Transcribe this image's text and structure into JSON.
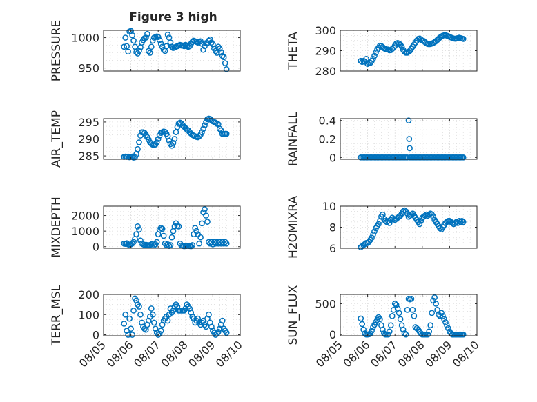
{
  "figure_title": "Figure 3 high",
  "colors": {
    "marker": "#0072BD",
    "axes": "#262626",
    "grid": "#d9d9d9"
  },
  "chart_data": [
    {
      "type": "scatter",
      "ylabel": "PRESSURE",
      "ylim": [
        945,
        1012
      ],
      "yticks": [
        950,
        1000
      ],
      "xlim": [
        0,
        5
      ],
      "xtick_labels": [
        "08/05",
        "08/06",
        "08/07",
        "08/08",
        "08/09",
        "08/10"
      ],
      "grid": true,
      "x": [
        0.75,
        0.8,
        0.85,
        0.9,
        0.95,
        1.0,
        1.05,
        1.1,
        1.15,
        1.2,
        1.25,
        1.3,
        1.35,
        1.4,
        1.45,
        1.5,
        1.55,
        1.6,
        1.65,
        1.7,
        1.75,
        1.8,
        1.85,
        1.9,
        1.95,
        2.0,
        2.05,
        2.1,
        2.15,
        2.2,
        2.25,
        2.3,
        2.35,
        2.4,
        2.45,
        2.5,
        2.55,
        2.6,
        2.65,
        2.7,
        2.75,
        2.8,
        2.85,
        2.9,
        2.95,
        3.0,
        3.05,
        3.1,
        3.15,
        3.2,
        3.25,
        3.3,
        3.35,
        3.4,
        3.45,
        3.5,
        3.55,
        3.6,
        3.65,
        3.7,
        3.75,
        3.8,
        3.85,
        3.9,
        3.95,
        4.0,
        4.05,
        4.1,
        4.15,
        4.2,
        4.25,
        4.3,
        4.35,
        4.4,
        4.45,
        4.5
      ],
      "y": [
        985,
        1000,
        986,
        977,
        1010,
        1011,
        1004,
        995,
        985,
        976,
        974,
        978,
        984,
        992,
        996,
        999,
        1000,
        1006,
        978,
        975,
        985,
        995,
        1000,
        1001,
        1002,
        1001,
        996,
        990,
        985,
        980,
        978,
        986,
        1005,
        1000,
        992,
        985,
        983,
        984,
        985,
        986,
        987,
        988,
        987,
        987,
        986,
        988,
        986,
        985,
        986,
        990,
        993,
        995,
        994,
        993,
        992,
        993,
        994,
        990,
        980,
        986,
        991,
        991,
        995,
        997,
        992,
        989,
        982,
        978,
        975,
        985,
        982,
        976,
        970,
        968,
        958,
        948
      ]
    },
    {
      "type": "scatter",
      "ylabel": "THETA",
      "ylim": [
        280,
        300
      ],
      "yticks": [
        280,
        290,
        300
      ],
      "xlim": [
        0,
        5
      ],
      "xtick_labels": [
        "08/05",
        "08/06",
        "08/07",
        "08/08",
        "08/09",
        "08/10"
      ],
      "grid": true,
      "x": [
        0.75,
        0.8,
        0.85,
        0.9,
        0.95,
        1.0,
        1.05,
        1.1,
        1.15,
        1.2,
        1.25,
        1.3,
        1.35,
        1.4,
        1.45,
        1.5,
        1.55,
        1.6,
        1.65,
        1.7,
        1.75,
        1.8,
        1.85,
        1.9,
        1.95,
        2.0,
        2.05,
        2.1,
        2.15,
        2.2,
        2.25,
        2.3,
        2.35,
        2.4,
        2.45,
        2.5,
        2.55,
        2.6,
        2.65,
        2.7,
        2.75,
        2.8,
        2.85,
        2.9,
        2.95,
        3.0,
        3.05,
        3.1,
        3.15,
        3.2,
        3.25,
        3.3,
        3.35,
        3.4,
        3.45,
        3.5,
        3.55,
        3.6,
        3.65,
        3.7,
        3.75,
        3.8,
        3.85,
        3.9,
        3.95,
        4.0,
        4.05,
        4.1,
        4.15,
        4.2,
        4.25,
        4.3,
        4.35,
        4.4,
        4.45,
        4.5
      ],
      "y": [
        285,
        284.5,
        285,
        284.6,
        286,
        283.5,
        284,
        284,
        285,
        286,
        287.5,
        289,
        290.5,
        291.5,
        292.5,
        292.3,
        291.8,
        291.2,
        290.8,
        290.7,
        290.6,
        290.2,
        290.3,
        290.9,
        291.5,
        292.5,
        293.5,
        293.8,
        293.5,
        293,
        292,
        290.5,
        289.5,
        289,
        289,
        289.5,
        290,
        291,
        292,
        293,
        294,
        295,
        295.8,
        296,
        295.5,
        295,
        294.8,
        294.2,
        293.7,
        293.3,
        293.2,
        293.3,
        293.5,
        293.8,
        294.2,
        294.7,
        295.3,
        295.9,
        296.5,
        297,
        297.4,
        297.6,
        297.6,
        297.4,
        297.1,
        296.8,
        296.5,
        296.2,
        296,
        295.9,
        296,
        296.2,
        296.4,
        296.2,
        296,
        295.8
      ]
    },
    {
      "type": "scatter",
      "ylabel": "AIR_TEMP",
      "ylim": [
        284,
        296
      ],
      "yticks": [
        285,
        290,
        295
      ],
      "xlim": [
        0,
        5
      ],
      "xtick_labels": [
        "08/05",
        "08/06",
        "08/07",
        "08/08",
        "08/09",
        "08/10"
      ],
      "grid": true,
      "x": [
        0.75,
        0.8,
        0.85,
        0.9,
        0.95,
        1.0,
        1.05,
        1.1,
        1.15,
        1.2,
        1.25,
        1.3,
        1.35,
        1.4,
        1.45,
        1.5,
        1.55,
        1.6,
        1.65,
        1.7,
        1.75,
        1.8,
        1.85,
        1.9,
        1.95,
        2.0,
        2.05,
        2.1,
        2.15,
        2.2,
        2.25,
        2.3,
        2.35,
        2.4,
        2.45,
        2.5,
        2.55,
        2.6,
        2.65,
        2.7,
        2.75,
        2.8,
        2.85,
        2.9,
        2.95,
        3.0,
        3.05,
        3.1,
        3.15,
        3.2,
        3.25,
        3.3,
        3.35,
        3.4,
        3.45,
        3.5,
        3.55,
        3.6,
        3.65,
        3.7,
        3.75,
        3.8,
        3.85,
        3.9,
        3.95,
        4.0,
        4.05,
        4.1,
        4.15,
        4.2,
        4.25,
        4.3,
        4.35,
        4.4,
        4.45,
        4.5
      ],
      "y": [
        284.7,
        284.8,
        284.7,
        284.8,
        284.6,
        284.7,
        284.8,
        284.5,
        284.6,
        285.5,
        287,
        289,
        291,
        292,
        292,
        291.8,
        291.2,
        290.5,
        289.8,
        289,
        288.6,
        288.3,
        288.2,
        288.4,
        289,
        290,
        291,
        291.8,
        292,
        292.2,
        292.1,
        291.5,
        290.8,
        289.5,
        288.5,
        288,
        288.8,
        290,
        292,
        293.5,
        294.5,
        294.8,
        294.5,
        294,
        293.6,
        293.2,
        292.8,
        292.5,
        292,
        291.6,
        291.2,
        291,
        290.8,
        290.6,
        290.5,
        290.8,
        291.3,
        292,
        293,
        294,
        295,
        295.8,
        296,
        295.9,
        295.5,
        295.2,
        295,
        294.8,
        294.5,
        294.3,
        293,
        292.5,
        291.5,
        291.5,
        291.5,
        291.5
      ]
    },
    {
      "type": "scatter",
      "ylabel": "RAINFALL",
      "ylim": [
        -0.02,
        0.42
      ],
      "yticks": [
        0,
        0.2,
        0.4
      ],
      "xlim": [
        0,
        5
      ],
      "xtick_labels": [
        "08/05",
        "08/06",
        "08/07",
        "08/08",
        "08/09",
        "08/10"
      ],
      "grid": true,
      "x": [
        0.75,
        0.8,
        0.85,
        0.9,
        0.95,
        1.0,
        1.05,
        1.1,
        1.15,
        1.2,
        1.25,
        1.3,
        1.35,
        1.4,
        1.45,
        1.5,
        1.55,
        1.6,
        1.65,
        1.7,
        1.75,
        1.8,
        1.85,
        1.9,
        1.95,
        2.0,
        2.05,
        2.1,
        2.15,
        2.2,
        2.25,
        2.3,
        2.35,
        2.4,
        2.45,
        2.5,
        2.52,
        2.54,
        2.55,
        2.6,
        2.65,
        2.7,
        2.75,
        2.8,
        2.85,
        2.9,
        2.95,
        3.0,
        3.05,
        3.1,
        3.15,
        3.2,
        3.25,
        3.3,
        3.35,
        3.4,
        3.45,
        3.5,
        3.55,
        3.6,
        3.65,
        3.7,
        3.75,
        3.8,
        3.85,
        3.9,
        3.95,
        4.0,
        4.05,
        4.1,
        4.15,
        4.2,
        4.25,
        4.3,
        4.35,
        4.4,
        4.45,
        4.5
      ],
      "y": [
        0,
        0,
        0,
        0,
        0,
        0,
        0,
        0,
        0,
        0,
        0,
        0,
        0,
        0,
        0,
        0,
        0,
        0,
        0,
        0,
        0,
        0,
        0,
        0,
        0,
        0,
        0,
        0,
        0,
        0,
        0,
        0,
        0,
        0,
        0,
        0.4,
        0.2,
        0.1,
        0,
        0,
        0,
        0,
        0,
        0,
        0,
        0,
        0,
        0,
        0,
        0,
        0,
        0,
        0,
        0,
        0,
        0,
        0,
        0,
        0,
        0,
        0,
        0,
        0,
        0,
        0,
        0,
        0,
        0,
        0,
        0,
        0,
        0,
        0,
        0,
        0,
        0,
        0,
        0
      ]
    },
    {
      "type": "scatter",
      "ylabel": "MIXDEPTH",
      "ylim": [
        -100,
        2600
      ],
      "yticks": [
        0,
        1000,
        2000
      ],
      "xlim": [
        0,
        5
      ],
      "xtick_labels": [
        "08/05",
        "08/06",
        "08/07",
        "08/08",
        "08/09",
        "08/10"
      ],
      "grid": true,
      "x": [
        0.75,
        0.8,
        0.85,
        0.9,
        0.95,
        1.0,
        1.05,
        1.1,
        1.15,
        1.2,
        1.25,
        1.3,
        1.35,
        1.4,
        1.45,
        1.5,
        1.55,
        1.6,
        1.65,
        1.7,
        1.75,
        1.8,
        1.85,
        1.9,
        1.95,
        2.0,
        2.05,
        2.1,
        2.15,
        2.2,
        2.25,
        2.3,
        2.35,
        2.4,
        2.45,
        2.5,
        2.55,
        2.6,
        2.65,
        2.7,
        2.75,
        2.8,
        2.85,
        2.9,
        2.95,
        3.0,
        3.05,
        3.1,
        3.15,
        3.2,
        3.25,
        3.3,
        3.35,
        3.4,
        3.45,
        3.5,
        3.55,
        3.6,
        3.65,
        3.7,
        3.75,
        3.8,
        3.85,
        3.9,
        3.95,
        4.0,
        4.05,
        4.1,
        4.15,
        4.2,
        4.25,
        4.3,
        4.35,
        4.4,
        4.45,
        4.5
      ],
      "y": [
        200,
        180,
        220,
        150,
        100,
        150,
        200,
        300,
        500,
        800,
        1300,
        1100,
        400,
        200,
        150,
        100,
        120,
        100,
        90,
        110,
        150,
        200,
        100,
        150,
        300,
        800,
        1100,
        1200,
        1150,
        700,
        200,
        100,
        150,
        50,
        100,
        600,
        1000,
        1300,
        1500,
        1350,
        1300,
        200,
        80,
        50,
        30,
        40,
        50,
        60,
        40,
        30,
        100,
        800,
        1200,
        1000,
        800,
        200,
        600,
        1500,
        2200,
        2400,
        2000,
        1600,
        300,
        200,
        300,
        150,
        300,
        200,
        300,
        200,
        300,
        200,
        300,
        200,
        300,
        200
      ]
    },
    {
      "type": "scatter",
      "ylabel": "H2OMIXRA",
      "ylim": [
        6,
        10
      ],
      "yticks": [
        6,
        8,
        10
      ],
      "xlim": [
        0,
        5
      ],
      "xtick_labels": [
        "08/05",
        "08/06",
        "08/07",
        "08/08",
        "08/09",
        "08/10"
      ],
      "grid": true,
      "x": [
        0.75,
        0.8,
        0.85,
        0.9,
        0.95,
        1.0,
        1.05,
        1.1,
        1.15,
        1.2,
        1.25,
        1.3,
        1.35,
        1.4,
        1.45,
        1.5,
        1.55,
        1.6,
        1.65,
        1.7,
        1.75,
        1.8,
        1.85,
        1.9,
        1.95,
        2.0,
        2.05,
        2.1,
        2.15,
        2.2,
        2.25,
        2.3,
        2.35,
        2.4,
        2.45,
        2.5,
        2.55,
        2.6,
        2.65,
        2.7,
        2.75,
        2.8,
        2.85,
        2.9,
        2.95,
        3.0,
        3.05,
        3.1,
        3.15,
        3.2,
        3.25,
        3.3,
        3.35,
        3.4,
        3.45,
        3.5,
        3.55,
        3.6,
        3.65,
        3.7,
        3.75,
        3.8,
        3.85,
        3.9,
        3.95,
        4.0,
        4.05,
        4.1,
        4.15,
        4.2,
        4.25,
        4.3,
        4.35,
        4.4,
        4.45,
        4.5
      ],
      "y": [
        6.1,
        6.2,
        6.3,
        6.4,
        6.5,
        6.5,
        6.6,
        6.8,
        7,
        7.3,
        7.6,
        7.9,
        8.1,
        8.3,
        8.6,
        9,
        9.2,
        8.8,
        8.6,
        8.5,
        8.6,
        8.4,
        8.7,
        8.9,
        8.8,
        8.7,
        8.8,
        8.9,
        9,
        9.1,
        9.3,
        9.5,
        9.6,
        9.5,
        9.3,
        9,
        9.1,
        9.2,
        9.3,
        9.1,
        8.9,
        8.7,
        8.5,
        8.3,
        8.6,
        8.9,
        9,
        9.1,
        9.2,
        9.1,
        9.2,
        9.3,
        9.2,
        9,
        8.7,
        8.5,
        8.3,
        8.1,
        7.9,
        7.8,
        8,
        8.2,
        8.4,
        8.5,
        8.6,
        8.6,
        8.5,
        8.4,
        8.3,
        8.4,
        8.5,
        8.4,
        8.6,
        8.5,
        8.6,
        8.5
      ]
    },
    {
      "type": "scatter",
      "ylabel": "TERR_MSL",
      "ylim": [
        -5,
        200
      ],
      "yticks": [
        0,
        100,
        200
      ],
      "xlim": [
        0,
        5
      ],
      "xtick_labels": [
        "08/05",
        "08/06",
        "08/07",
        "08/08",
        "08/09",
        "08/10"
      ],
      "grid": true,
      "x": [
        0.75,
        0.8,
        0.85,
        0.9,
        0.95,
        1.0,
        1.05,
        1.1,
        1.15,
        1.2,
        1.25,
        1.3,
        1.35,
        1.4,
        1.45,
        1.5,
        1.55,
        1.6,
        1.65,
        1.7,
        1.75,
        1.8,
        1.85,
        1.9,
        1.95,
        2.0,
        2.05,
        2.1,
        2.15,
        2.2,
        2.25,
        2.3,
        2.35,
        2.4,
        2.45,
        2.5,
        2.55,
        2.6,
        2.65,
        2.7,
        2.75,
        2.8,
        2.85,
        2.9,
        2.95,
        3.0,
        3.05,
        3.1,
        3.15,
        3.2,
        3.25,
        3.3,
        3.35,
        3.4,
        3.45,
        3.5,
        3.55,
        3.6,
        3.65,
        3.7,
        3.75,
        3.8,
        3.85,
        3.9,
        3.95,
        4.0,
        4.05,
        4.1,
        4.15,
        4.2,
        4.25,
        4.3,
        4.35,
        4.4,
        4.45,
        4.5
      ],
      "y": [
        55,
        100,
        20,
        0,
        80,
        30,
        0,
        120,
        180,
        170,
        150,
        140,
        100,
        60,
        40,
        30,
        25,
        50,
        70,
        90,
        130,
        100,
        60,
        30,
        10,
        0,
        5,
        20,
        50,
        70,
        80,
        90,
        70,
        100,
        130,
        110,
        120,
        140,
        150,
        140,
        120,
        120,
        120,
        120,
        120,
        130,
        150,
        140,
        130,
        110,
        90,
        80,
        60,
        70,
        80,
        60,
        50,
        60,
        70,
        50,
        40,
        80,
        100,
        60,
        40,
        20,
        10,
        0,
        5,
        15,
        30,
        50,
        70,
        30,
        20,
        10
      ]
    },
    {
      "type": "scatter",
      "ylabel": "SUN_FLUX",
      "ylim": [
        -20,
        650
      ],
      "yticks": [
        0,
        500
      ],
      "xlim": [
        0,
        5
      ],
      "xtick_labels": [
        "08/05",
        "08/06",
        "08/07",
        "08/08",
        "08/09",
        "08/10"
      ],
      "grid": true,
      "x": [
        0.75,
        0.8,
        0.85,
        0.9,
        0.95,
        1.0,
        1.05,
        1.1,
        1.15,
        1.2,
        1.25,
        1.3,
        1.35,
        1.4,
        1.45,
        1.5,
        1.55,
        1.6,
        1.65,
        1.7,
        1.75,
        1.8,
        1.85,
        1.9,
        1.95,
        2.0,
        2.05,
        2.1,
        2.15,
        2.2,
        2.25,
        2.3,
        2.35,
        2.4,
        2.45,
        2.5,
        2.55,
        2.6,
        2.65,
        2.7,
        2.75,
        2.8,
        2.85,
        2.9,
        2.95,
        3.0,
        3.05,
        3.1,
        3.15,
        3.2,
        3.25,
        3.3,
        3.35,
        3.4,
        3.45,
        3.5,
        3.55,
        3.6,
        3.65,
        3.7,
        3.75,
        3.8,
        3.85,
        3.9,
        3.95,
        4.0,
        4.05,
        4.1,
        4.15,
        4.2,
        4.25,
        4.3,
        4.35,
        4.4,
        4.45,
        4.5
      ],
      "y": [
        260,
        170,
        80,
        20,
        0,
        0,
        5,
        20,
        60,
        120,
        160,
        200,
        240,
        280,
        250,
        150,
        80,
        20,
        0,
        0,
        0,
        50,
        150,
        300,
        400,
        500,
        480,
        420,
        350,
        250,
        150,
        80,
        20,
        0,
        400,
        580,
        570,
        580,
        400,
        300,
        120,
        100,
        80,
        50,
        20,
        0,
        0,
        0,
        0,
        0,
        50,
        150,
        350,
        550,
        600,
        500,
        400,
        320,
        300,
        350,
        300,
        250,
        200,
        150,
        100,
        50,
        20,
        0,
        0,
        0,
        0,
        0,
        0,
        0,
        0,
        0
      ]
    }
  ]
}
